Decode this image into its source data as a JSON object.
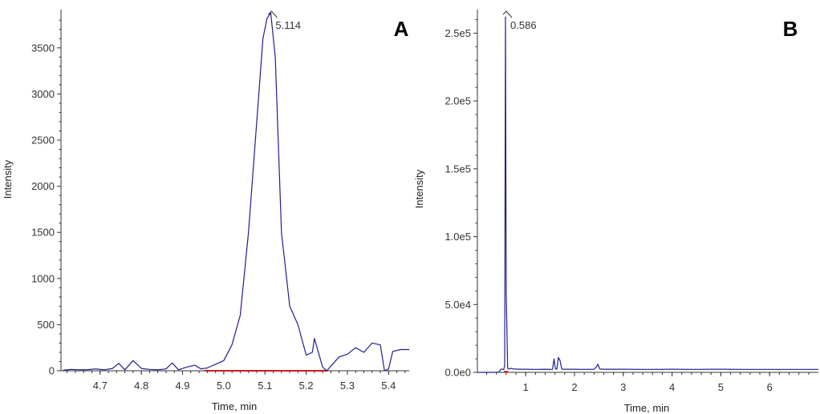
{
  "colors": {
    "trace": "#1f1f8f",
    "baseline": "#d11a1a",
    "axis": "#333333",
    "background": "#ffffff"
  },
  "chart_data": [
    {
      "type": "line",
      "panel_label": "A",
      "xlabel": "Time, min",
      "ylabel": "Intensity",
      "xlim": [
        4.605,
        5.45
      ],
      "ylim": [
        0,
        3880
      ],
      "x_ticks": [
        "4.7",
        "4.8",
        "4.9",
        "5.0",
        "5.1",
        "5.2",
        "5.3",
        "5.4"
      ],
      "x_tick_values": [
        4.7,
        4.8,
        4.9,
        5.0,
        5.1,
        5.2,
        5.3,
        5.4
      ],
      "y_ticks": [
        "0",
        "500",
        "1000",
        "1500",
        "2000",
        "2500",
        "3000",
        "3500"
      ],
      "y_tick_values": [
        0,
        500,
        1000,
        1500,
        2000,
        2500,
        3000,
        3500
      ],
      "peak_annotation": {
        "label": "5.114",
        "x": 5.114,
        "y": 3880
      },
      "integration_baseline": {
        "x": [
          4.953,
          5.252
        ],
        "y": [
          0,
          0
        ]
      },
      "series": [
        {
          "x": [
            4.61,
            4.63,
            4.65,
            4.67,
            4.69,
            4.71,
            4.73,
            4.745,
            4.76,
            4.78,
            4.8,
            4.82,
            4.84,
            4.86,
            4.875,
            4.89,
            4.91,
            4.93,
            4.945,
            4.96,
            4.98,
            5.0,
            5.02,
            5.04,
            5.06,
            5.08,
            5.095,
            5.105,
            5.114,
            5.125,
            5.14,
            5.16,
            5.18,
            5.2,
            5.215,
            5.22,
            5.24,
            5.25,
            5.26,
            5.28,
            5.3,
            5.32,
            5.34,
            5.36,
            5.38,
            5.39,
            5.4,
            5.41,
            5.43,
            5.45
          ],
          "y": [
            5,
            15,
            10,
            12,
            20,
            10,
            25,
            80,
            10,
            110,
            25,
            15,
            10,
            20,
            85,
            10,
            40,
            60,
            20,
            30,
            70,
            110,
            280,
            600,
            1500,
            2700,
            3600,
            3820,
            3880,
            3400,
            1500,
            700,
            500,
            170,
            200,
            350,
            40,
            0,
            50,
            150,
            180,
            250,
            200,
            300,
            280,
            0,
            20,
            210,
            230,
            230
          ]
        }
      ]
    },
    {
      "type": "line",
      "panel_label": "B",
      "xlabel": "Time, min",
      "ylabel": "Intensity",
      "xlim": [
        0.01,
        7.0
      ],
      "ylim": [
        0,
        265000
      ],
      "x_ticks": [
        "1",
        "2",
        "3",
        "4",
        "5",
        "6"
      ],
      "x_tick_values": [
        1,
        2,
        3,
        4,
        5,
        6
      ],
      "y_ticks": [
        "0.0e0",
        "5.0e4",
        "1.0e5",
        "1.5e5",
        "2.0e5",
        "2.5e5"
      ],
      "y_tick_values": [
        0,
        50000,
        100000,
        150000,
        200000,
        250000
      ],
      "peak_annotation": {
        "label": "0.586",
        "x": 0.586,
        "y": 265000
      },
      "integration_baseline": {
        "x": [
          0.555,
          0.64
        ],
        "y": [
          500,
          500
        ]
      },
      "series": [
        {
          "x": [
            0.01,
            0.3,
            0.45,
            0.5,
            0.55,
            0.57,
            0.586,
            0.6,
            0.63,
            0.66,
            0.7,
            0.75,
            0.8,
            0.9,
            1.0,
            1.2,
            1.4,
            1.55,
            1.58,
            1.61,
            1.64,
            1.67,
            1.7,
            1.74,
            1.78,
            2.0,
            2.2,
            2.4,
            2.45,
            2.48,
            2.52,
            2.6,
            3.0,
            3.5,
            4.0,
            4.5,
            5.0,
            5.5,
            6.0,
            6.5,
            7.0
          ],
          "y": [
            0,
            0,
            200,
            2500,
            2000,
            5000,
            262000,
            60000,
            3000,
            2500,
            3000,
            2500,
            2400,
            2300,
            2300,
            2200,
            2300,
            2200,
            10000,
            2500,
            2400,
            11000,
            9000,
            2400,
            2300,
            2300,
            2200,
            2300,
            4000,
            6000,
            2400,
            2300,
            2300,
            2200,
            2300,
            2200,
            2300,
            2200,
            2200,
            2200,
            2200
          ]
        }
      ]
    }
  ]
}
